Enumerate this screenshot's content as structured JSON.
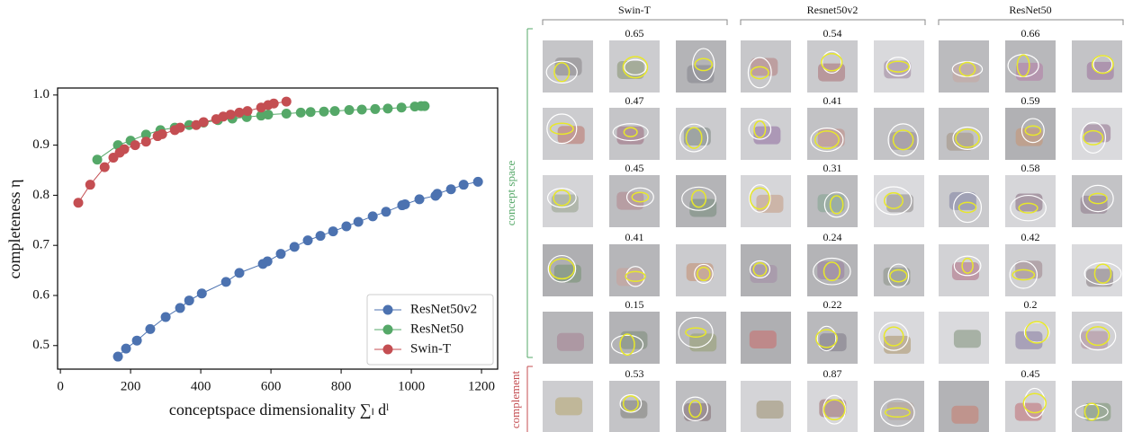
{
  "chart_data": {
    "type": "line",
    "xlabel": "conceptspace dimensionality ∑ₗ dˡ",
    "ylabel": "completeness η",
    "xlim": [
      -8,
      1246
    ],
    "ylim": [
      0.453,
      1.014
    ],
    "xticks": [
      0,
      200,
      400,
      600,
      800,
      1000,
      1200
    ],
    "yticks": [
      0.5,
      0.6,
      0.7,
      0.8,
      0.9,
      {
        "value": 1,
        "label": "1.0"
      }
    ],
    "legend": "lower right",
    "series": [
      {
        "name": "ResNet50v2",
        "color": "#4c72b0",
        "x": [
          164,
          187,
          218,
          256,
          300,
          341,
          367,
          403,
          472,
          510,
          577,
          590,
          628,
          667,
          705,
          741,
          777,
          815,
          849,
          890,
          928,
          974,
          982,
          1023,
          1069,
          1074,
          1113,
          1149,
          1190
        ],
        "values": [
          0.478,
          0.494,
          0.51,
          0.533,
          0.557,
          0.575,
          0.59,
          0.604,
          0.627,
          0.645,
          0.663,
          0.668,
          0.683,
          0.697,
          0.71,
          0.719,
          0.728,
          0.738,
          0.747,
          0.758,
          0.767,
          0.78,
          0.782,
          0.792,
          0.799,
          0.803,
          0.812,
          0.821,
          0.827
        ]
      },
      {
        "name": "ResNet50",
        "color": "#55a868",
        "x": [
          105,
          164,
          200,
          244,
          285,
          326,
          367,
          408,
          449,
          490,
          531,
          572,
          592,
          644,
          685,
          713,
          751,
          782,
          823,
          859,
          897,
          933,
          972,
          1010,
          1028,
          1038
        ],
        "values": [
          0.871,
          0.9,
          0.909,
          0.921,
          0.93,
          0.935,
          0.94,
          0.945,
          0.95,
          0.953,
          0.956,
          0.959,
          0.961,
          0.963,
          0.965,
          0.966,
          0.967,
          0.968,
          0.97,
          0.971,
          0.972,
          0.973,
          0.975,
          0.977,
          0.978,
          0.978
        ]
      },
      {
        "name": "Swin-T",
        "color": "#c44e52",
        "x": [
          51,
          85,
          126,
          151,
          169,
          182,
          213,
          244,
          277,
          290,
          326,
          341,
          387,
          408,
          444,
          464,
          485,
          510,
          533,
          572,
          592,
          608,
          644
        ],
        "values": [
          0.785,
          0.821,
          0.856,
          0.875,
          0.885,
          0.892,
          0.9,
          0.907,
          0.918,
          0.922,
          0.93,
          0.935,
          0.94,
          0.946,
          0.952,
          0.957,
          0.961,
          0.965,
          0.968,
          0.975,
          0.98,
          0.983,
          0.987
        ]
      }
    ]
  },
  "image_grid": {
    "models": [
      "Swin-T",
      "Resnet50v2",
      "ResNet50"
    ],
    "side_labels": [
      "concept space",
      "complement"
    ],
    "scores": [
      [
        0.65,
        0.54,
        0.66
      ],
      [
        0.47,
        0.41,
        0.59
      ],
      [
        0.45,
        0.31,
        0.58
      ],
      [
        0.41,
        0.24,
        0.42
      ],
      [
        0.15,
        0.22,
        0.2
      ],
      [
        0.53,
        0.87,
        0.45
      ]
    ]
  }
}
